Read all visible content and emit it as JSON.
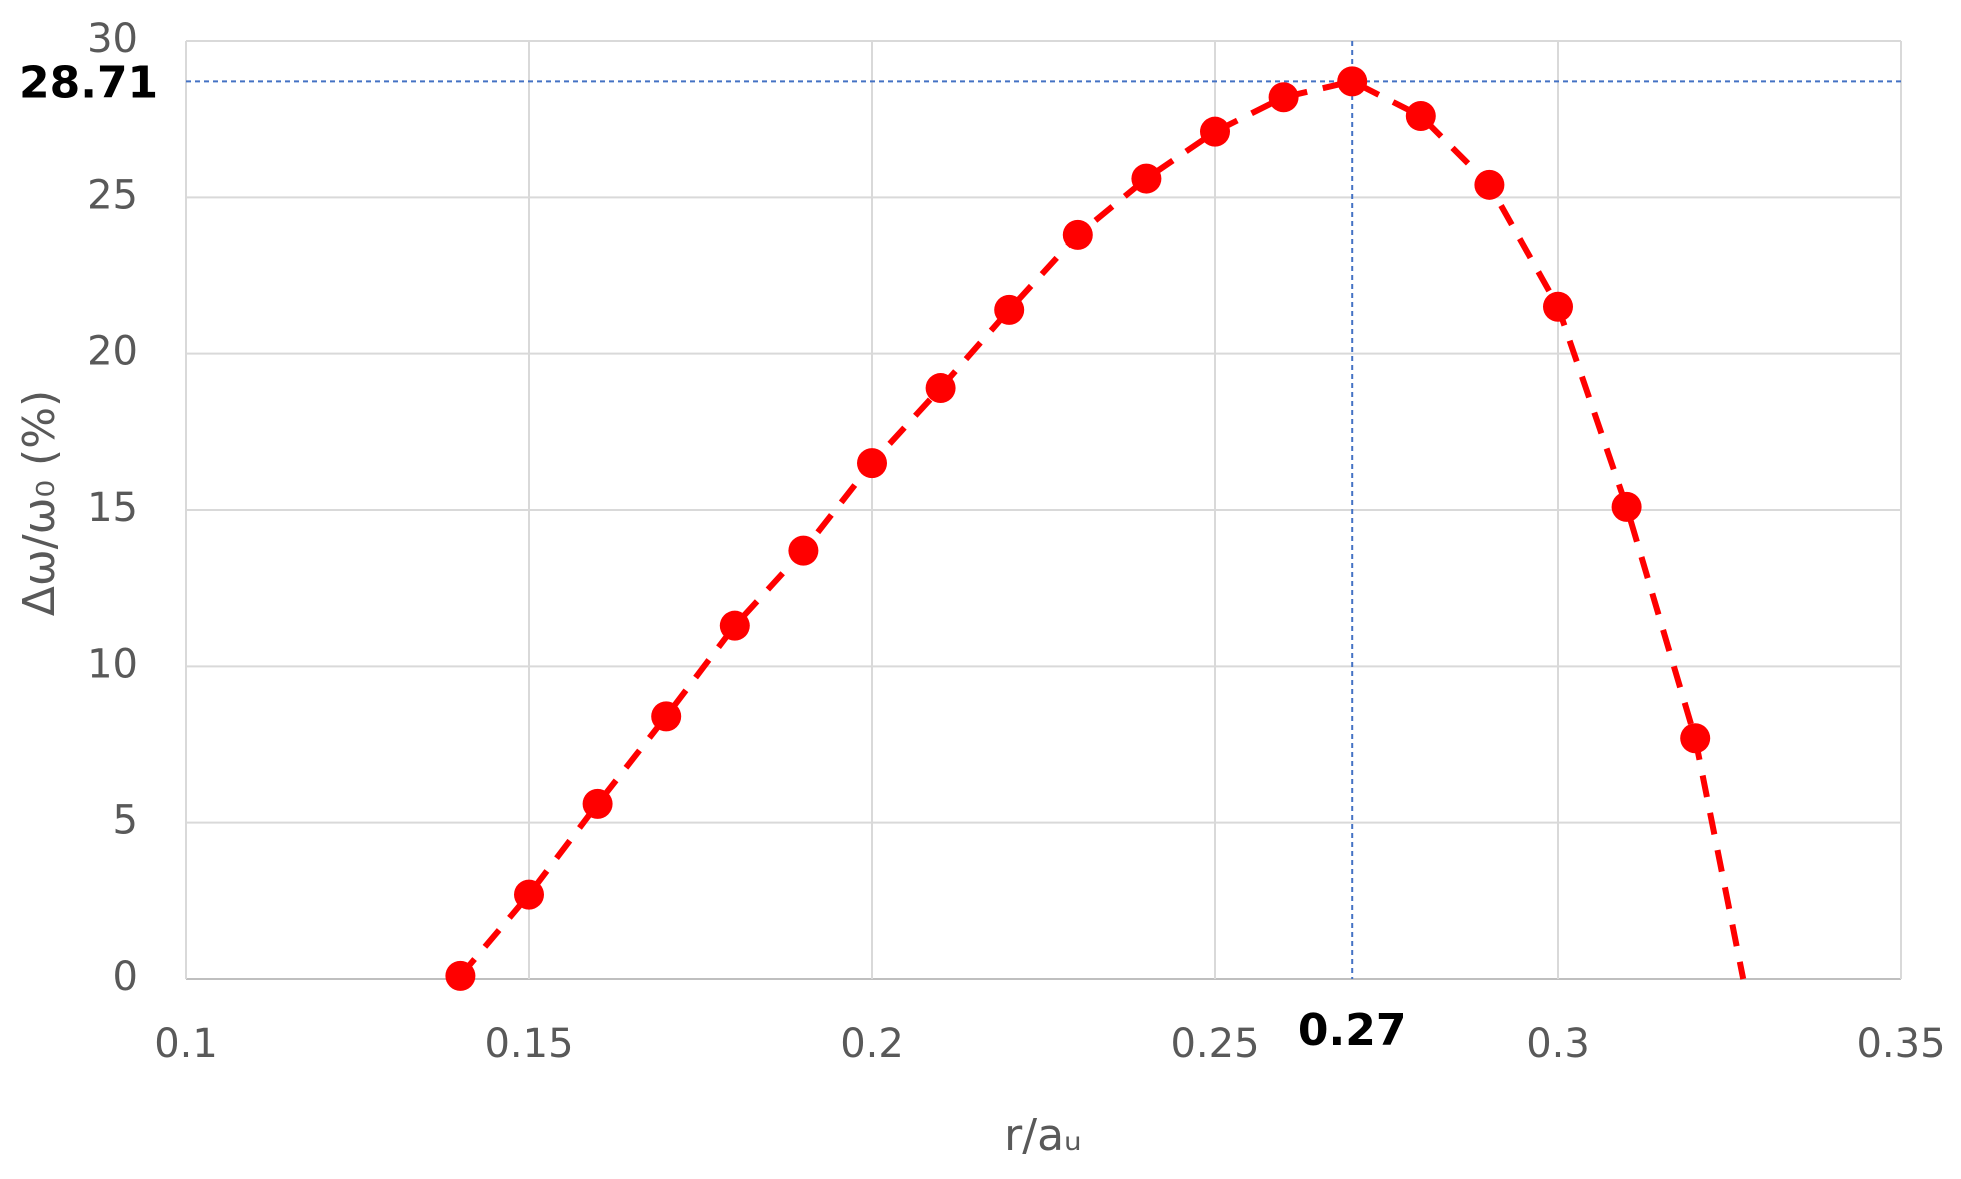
{
  "chart_data": {
    "type": "scatter",
    "x_label": "r/aᵤ",
    "y_label": "Δω/ω₀ (%)",
    "xlim": [
      0.1,
      0.35
    ],
    "xticks": [
      0.1,
      0.15,
      0.2,
      0.25,
      0.3,
      0.35
    ],
    "ylim": [
      0,
      30
    ],
    "yticks": [
      0,
      5,
      10,
      15,
      20,
      25,
      30
    ],
    "grid": true,
    "grid_color": "#d9d9d9",
    "ref_color": "#4472c4",
    "hline": 28.71,
    "vline": 0.27,
    "series": [
      {
        "color": "#ff0000",
        "marker": true,
        "line": true,
        "x": [
          0.14,
          0.15,
          0.16,
          0.17,
          0.18,
          0.19,
          0.2,
          0.21,
          0.22,
          0.23,
          0.24,
          0.25,
          0.26,
          0.27,
          0.28,
          0.29,
          0.3,
          0.31,
          0.32
        ],
        "values": [
          0.1,
          2.7,
          5.6,
          8.4,
          11.3,
          13.7,
          16.5,
          18.9,
          21.4,
          23.8,
          25.6,
          27.1,
          28.2,
          28.71,
          27.6,
          25.4,
          21.5,
          15.1,
          7.7
        ]
      },
      {
        "color": "#ff0000",
        "marker": false,
        "line": true,
        "x": [
          0.32,
          0.327
        ],
        "values": [
          7.7,
          0
        ]
      }
    ]
  }
}
